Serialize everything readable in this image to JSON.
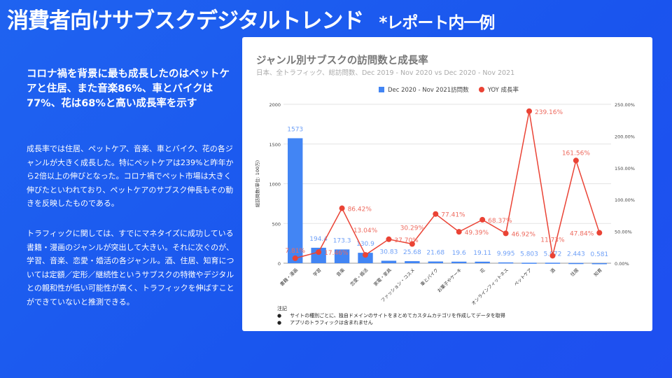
{
  "slide": {
    "title": "消費者向けサブスクデジタルトレンド",
    "title_note": "*レポート内一例",
    "headline": "コロナ禍を背景に最も成長したのはペットケアと住居、また音楽86%、車とバイクは77%、花は68%と高い成長率を示す",
    "paragraph1": "成長率では住居、ペットケア、音楽、車とバイク、花の各ジャンルが大きく成長した。特にペットケアは239%と昨年から2倍以上の伸びとなった。コロナ禍でペット市場は大きく伸びたといわれており、ペットケアのサブスク伸長もその動きを反映したものである。",
    "paragraph2": "トラフィックに関しては、すでにマネタイズに成功している書籍・漫画のジャンルが突出して大きい。それに次ぐのが、学習、音楽、恋愛・婚活の各ジャンル。酒、住居、知育については定額／定形／継続性というサブスクの特徴やデジタルとの親和性が低い可能性が高く、トラフィックを伸ばすことができていないと推測できる。"
  },
  "notes": {
    "heading": "注記",
    "items": [
      "サイトの種別ごとに、独自ドメインのサイトをまとめてカスタムカテゴリを作成してデータを取得",
      "アプリのトラフィックは含まれません"
    ]
  },
  "chart_data": {
    "type": "bar+line",
    "title": "ジャンル別サブスクの訪問数と成長率",
    "subtitle": "日本、全トラフィック、総訪問数、Dec 2019 - Nov 2020 vs Dec 2020 - Nov 2021",
    "ylabel": "総訪問数(単位: 100万)",
    "ylim": [
      0,
      2000
    ],
    "yticks": [
      "0",
      "500",
      "1000",
      "1500",
      "2000"
    ],
    "y2lim": [
      0,
      250
    ],
    "y2ticks": [
      "0.00%",
      "50.00%",
      "100.00%",
      "150.00%",
      "200.00%",
      "250.00%"
    ],
    "legend_position": "top",
    "grid": true,
    "categories": [
      "書籍・漫画",
      "学習",
      "音楽",
      "恋愛・婚活",
      "家電・家具",
      "ファッション・コスメ",
      "車とバイク",
      "お菓子やケーキ",
      "花",
      "オンラインフィットネス",
      "ペットケア",
      "酒",
      "住居",
      "知育"
    ],
    "series": [
      {
        "name": "Dec 2020 - Nov 2021訪問数",
        "type": "bar",
        "color": "#4285f4",
        "values": [
          1573,
          194.4,
          173.3,
          130.9,
          30.83,
          25.68,
          21.68,
          19.6,
          19.11,
          9.995,
          5.803,
          5.972,
          2.443,
          0.581
        ],
        "labels": [
          "1573",
          "194.4",
          "173.3",
          "130.9",
          "30.83",
          "25.68",
          "21.68",
          "19.6",
          "19.11",
          "9.995",
          "5.803",
          "5.972",
          "2.443",
          "0.581"
        ]
      },
      {
        "name": "YOY 成長率",
        "type": "line",
        "color": "#ea4335",
        "values": [
          7.81,
          17.46,
          86.42,
          13.04,
          37.7,
          30.29,
          77.41,
          49.39,
          68.37,
          46.92,
          239.16,
          11.73,
          161.56,
          47.84
        ],
        "labels": [
          "7.81%",
          "17.46%",
          "86.42%",
          "13.04%",
          "37.70%",
          "30.29%",
          "77.41%",
          "49.39%",
          "68.37%",
          "46.92%",
          "239.16%",
          "11.73%",
          "161.56%",
          "47.84%"
        ]
      }
    ]
  }
}
